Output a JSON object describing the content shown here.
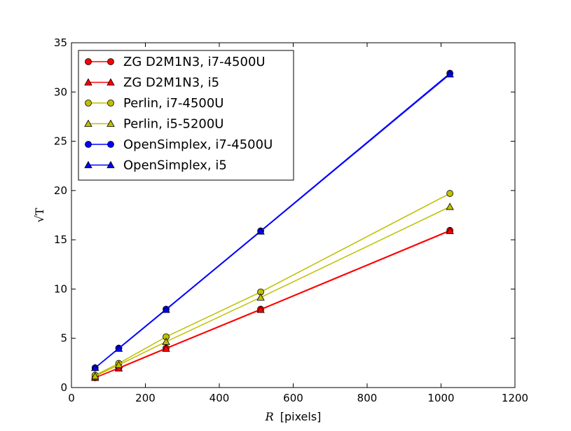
{
  "chart_data": {
    "type": "line",
    "xlabel_var": "R",
    "xlabel_unit": "[pixels]",
    "ylabel": "√T",
    "xlim": [
      0,
      1200
    ],
    "ylim": [
      0,
      35
    ],
    "xticks": [
      0,
      200,
      400,
      600,
      800,
      1000,
      1200
    ],
    "yticks": [
      0,
      5,
      10,
      15,
      20,
      25,
      30,
      35
    ],
    "grid": false,
    "legend_position": "top-left",
    "x": [
      64,
      128,
      256,
      512,
      1024
    ],
    "series": [
      {
        "name": "ZG D2M1N3, i7-4500U",
        "color": "#ff0000",
        "marker": "circle",
        "values": [
          1.0,
          2.0,
          4.0,
          7.95,
          15.95
        ]
      },
      {
        "name": "ZG D2M1N3, i5",
        "color": "#ff0000",
        "marker": "triangle",
        "values": [
          1.0,
          1.95,
          3.95,
          7.9,
          15.9
        ]
      },
      {
        "name": "Perlin, i7-4500U",
        "color": "#bfbf00",
        "marker": "circle",
        "values": [
          1.25,
          2.45,
          5.15,
          9.7,
          19.7
        ]
      },
      {
        "name": "Perlin, i5-5200U",
        "color": "#bfbf00",
        "marker": "triangle",
        "values": [
          1.15,
          2.3,
          4.65,
          9.15,
          18.35
        ]
      },
      {
        "name": "OpenSimplex, i7-4500U",
        "color": "#0000ff",
        "marker": "circle",
        "values": [
          2.0,
          4.0,
          7.95,
          15.9,
          31.9
        ]
      },
      {
        "name": "OpenSimplex, i5",
        "color": "#0000ff",
        "marker": "triangle",
        "values": [
          2.0,
          3.95,
          7.9,
          15.85,
          31.8
        ]
      }
    ]
  }
}
